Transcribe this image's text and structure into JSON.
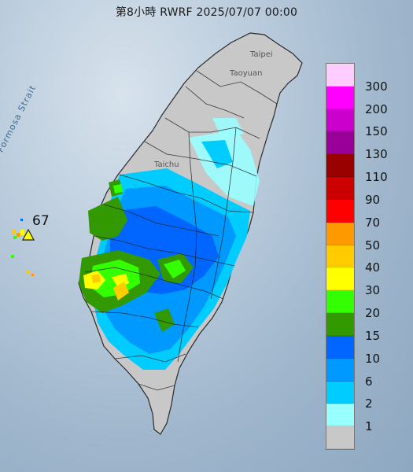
{
  "title": "第8小時  RWRF 2025/07/07 00:00",
  "places": {
    "taipei": "Taipei",
    "taoyuan": "Taoyuan",
    "taichung": "Taichu",
    "strait": "Formosa Strait"
  },
  "marker": {
    "value": "67"
  },
  "legend": [
    {
      "label": "300",
      "color": "#ffccff"
    },
    {
      "label": "200",
      "color": "#ff00ff"
    },
    {
      "label": "150",
      "color": "#cc00cc"
    },
    {
      "label": "130",
      "color": "#990099"
    },
    {
      "label": "110",
      "color": "#990000"
    },
    {
      "label": "90",
      "color": "#cc0000"
    },
    {
      "label": "70",
      "color": "#ff0000"
    },
    {
      "label": "50",
      "color": "#ff9900"
    },
    {
      "label": "40",
      "color": "#ffcc00"
    },
    {
      "label": "30",
      "color": "#ffff00"
    },
    {
      "label": "20",
      "color": "#33ff00"
    },
    {
      "label": "15",
      "color": "#339900"
    },
    {
      "label": "10",
      "color": "#0066ff"
    },
    {
      "label": "6",
      "color": "#0099ff"
    },
    {
      "label": "2",
      "color": "#00ccff"
    },
    {
      "label": "1",
      "color": "#99ffff"
    },
    {
      "label": "",
      "color": "#c8c8c8"
    }
  ]
}
